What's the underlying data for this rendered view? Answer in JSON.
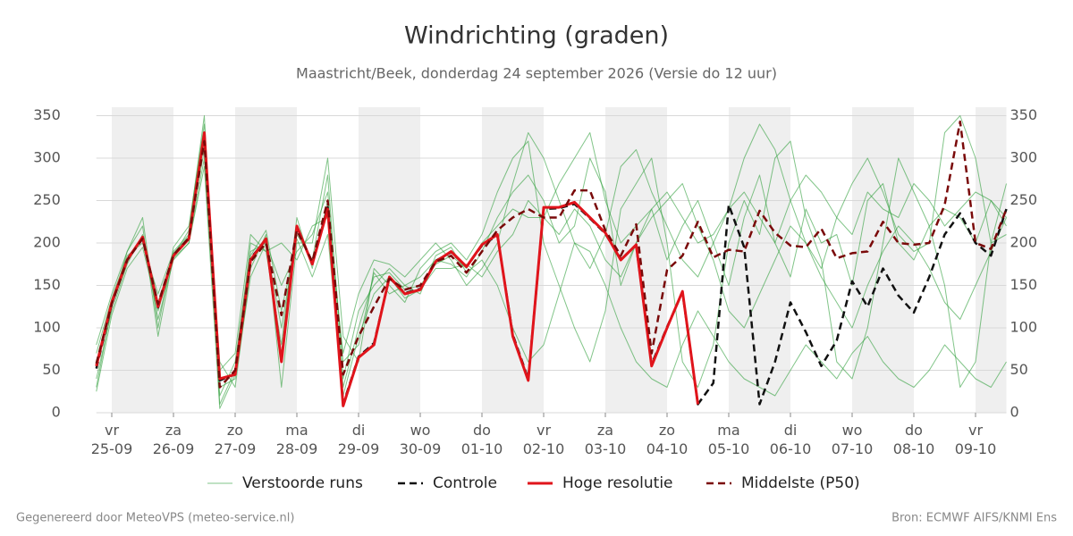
{
  "chart_data": {
    "type": "line",
    "title": "Windrichting (graden)",
    "subtitle": "Maastricht/Beek, donderdag 24 september 2026 (Versie do 12 uur)",
    "footer_left": "Gegenereerd door MeteoVPS (meteo-service.nl)",
    "footer_right": "Bron: ECMWF AIFS/KNMI Ens",
    "x": [
      -6,
      0,
      6,
      12,
      18,
      24,
      30,
      36,
      42,
      48,
      54,
      60,
      66,
      72,
      78,
      84,
      90,
      96,
      102,
      108,
      114,
      120,
      126,
      132,
      138,
      144,
      150,
      156,
      162,
      168,
      174,
      180,
      186,
      192,
      198,
      204,
      210,
      216,
      222,
      228,
      234,
      240,
      246,
      252,
      258,
      264,
      270,
      276,
      282,
      288,
      294,
      300,
      306,
      312,
      318,
      324,
      330,
      336,
      342,
      348
    ],
    "xlim": [
      -6,
      348
    ],
    "xticks": [
      {
        "value": 0,
        "label": "vr 25-09"
      },
      {
        "value": 24,
        "label": "za 26-09"
      },
      {
        "value": 48,
        "label": "zo 27-09"
      },
      {
        "value": 72,
        "label": "ma 28-09"
      },
      {
        "value": 96,
        "label": "di 29-09"
      },
      {
        "value": 120,
        "label": "wo 30-09"
      },
      {
        "value": 144,
        "label": "do 01-10"
      },
      {
        "value": 168,
        "label": "vr 02-10"
      },
      {
        "value": 192,
        "label": "za 03-10"
      },
      {
        "value": 216,
        "label": "zo 04-10"
      },
      {
        "value": 240,
        "label": "ma 05-10"
      },
      {
        "value": 264,
        "label": "di 06-10"
      },
      {
        "value": 288,
        "label": "wo 07-10"
      },
      {
        "value": 312,
        "label": "do 08-10"
      },
      {
        "value": 336,
        "label": "vr 09-10"
      }
    ],
    "ylim": [
      0,
      360
    ],
    "yticks": [
      0,
      50,
      100,
      150,
      200,
      250,
      300,
      350
    ],
    "grid": true,
    "legend": "bottom",
    "series": [
      {
        "name": "Verstoorde runs",
        "color": "#2f9e3a",
        "style": "thin",
        "members": [
          [
            40,
            120,
            175,
            210,
            110,
            180,
            200,
            300,
            20,
            60,
            190,
            200,
            100,
            210,
            180,
            280,
            40,
            120,
            150,
            170,
            150,
            160,
            180,
            175,
            160,
            190,
            230,
            260,
            280,
            250,
            200,
            220,
            300,
            260,
            150,
            200,
            240,
            180,
            220,
            250,
            200,
            150,
            230,
            280,
            200,
            160,
            240,
            200,
            210,
            150,
            250,
            270,
            200,
            180,
            220,
            240,
            230,
            200,
            250,
            220
          ],
          [
            70,
            135,
            185,
            200,
            140,
            190,
            210,
            320,
            60,
            30,
            170,
            210,
            30,
            200,
            200,
            300,
            90,
            60,
            170,
            150,
            130,
            170,
            190,
            200,
            180,
            210,
            260,
            300,
            320,
            200,
            150,
            100,
            60,
            120,
            240,
            270,
            300,
            200,
            60,
            30,
            80,
            200,
            250,
            210,
            300,
            320,
            230,
            180,
            60,
            40,
            100,
            200,
            300,
            260,
            220,
            150,
            30,
            60,
            200,
            210
          ],
          [
            30,
            125,
            190,
            220,
            90,
            185,
            215,
            350,
            10,
            50,
            200,
            190,
            80,
            230,
            170,
            250,
            30,
            100,
            160,
            165,
            145,
            150,
            175,
            185,
            170,
            200,
            220,
            240,
            230,
            230,
            270,
            300,
            330,
            250,
            200,
            220,
            240,
            260,
            230,
            200,
            210,
            240,
            260,
            230,
            200,
            250,
            280,
            260,
            230,
            210,
            260,
            240,
            230,
            270,
            250,
            220,
            240,
            260,
            250,
            230
          ],
          [
            60,
            130,
            180,
            205,
            130,
            188,
            208,
            310,
            30,
            40,
            160,
            200,
            150,
            190,
            210,
            260,
            60,
            80,
            165,
            140,
            150,
            140,
            185,
            195,
            165,
            180,
            150,
            100,
            60,
            80,
            140,
            200,
            190,
            150,
            100,
            60,
            40,
            30,
            80,
            120,
            90,
            60,
            40,
            30,
            20,
            50,
            80,
            60,
            40,
            70,
            90,
            60,
            40,
            30,
            50,
            80,
            60,
            40,
            30,
            60
          ],
          [
            80,
            140,
            190,
            230,
            100,
            195,
            220,
            340,
            50,
            70,
            210,
            190,
            200,
            180,
            220,
            230,
            70,
            140,
            180,
            175,
            160,
            180,
            200,
            180,
            150,
            170,
            200,
            270,
            330,
            300,
            250,
            200,
            170,
            210,
            290,
            310,
            260,
            220,
            180,
            160,
            200,
            240,
            300,
            340,
            310,
            250,
            200,
            170,
            230,
            270,
            300,
            260,
            210,
            190,
            200,
            330,
            350,
            300,
            200,
            270
          ],
          [
            25,
            115,
            170,
            195,
            120,
            182,
            200,
            290,
            5,
            45,
            185,
            215,
            120,
            205,
            160,
            210,
            20,
            90,
            140,
            160,
            135,
            145,
            170,
            170,
            175,
            160,
            190,
            210,
            250,
            230,
            210,
            240,
            220,
            180,
            160,
            200,
            230,
            250,
            270,
            220,
            180,
            120,
            100,
            140,
            180,
            220,
            200,
            160,
            130,
            100,
            150,
            190,
            220,
            200,
            170,
            130,
            110,
            150,
            190,
            230
          ]
        ]
      },
      {
        "name": "Controle",
        "color": "#111111",
        "style": "dashed",
        "values": [
          52,
          128,
          181,
          206,
          124,
          186,
          206,
          328,
          38,
          46,
          182,
          204,
          62,
          219,
          176,
          242,
          10,
          66,
          82,
          159,
          141,
          146,
          179,
          189,
          172,
          197,
          209,
          92,
          40,
          240,
          241,
          246,
          229,
          211,
          181,
          197,
          57,
          101,
          142,
          10,
          35,
          245,
          195,
          10,
          60,
          130,
          95,
          55,
          85,
          155,
          125,
          170,
          138,
          118,
          160,
          210,
          235,
          200,
          185,
          240
        ]
      },
      {
        "name": "Hoge resolutie",
        "color": "#e0141b",
        "style": "thick",
        "values": [
          55,
          130,
          180,
          207,
          125,
          185,
          205,
          330,
          40,
          45,
          180,
          205,
          60,
          220,
          175,
          240,
          8,
          65,
          80,
          160,
          140,
          145,
          178,
          190,
          172,
          198,
          210,
          90,
          38,
          242,
          242,
          248,
          230,
          212,
          180,
          198,
          55,
          100,
          143,
          10,
          null,
          null,
          null,
          null,
          null,
          null,
          null,
          null,
          null,
          null,
          null,
          null,
          null,
          null,
          null,
          null,
          null,
          null,
          null,
          null
        ]
      },
      {
        "name": "Middelste (P50)",
        "color": "#7a0a0a",
        "style": "dashed",
        "values": [
          58,
          128,
          180,
          205,
          128,
          186,
          206,
          320,
          30,
          50,
          178,
          200,
          115,
          215,
          178,
          250,
          45,
          90,
          125,
          158,
          145,
          150,
          178,
          185,
          165,
          190,
          215,
          230,
          240,
          230,
          230,
          262,
          262,
          215,
          185,
          222,
          70,
          168,
          185,
          225,
          183,
          192,
          190,
          238,
          212,
          197,
          195,
          217,
          182,
          188,
          190,
          225,
          200,
          198,
          200,
          245,
          343,
          200,
          193,
          240
        ]
      }
    ]
  }
}
